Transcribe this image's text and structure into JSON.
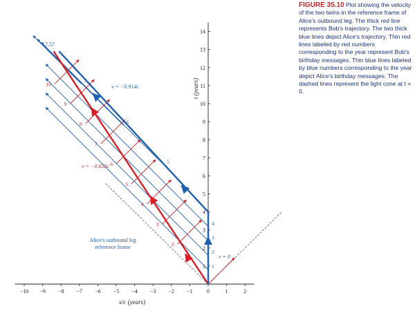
{
  "caption": {
    "label": "FIGURE 35.10",
    "text": "Plot showing the velocity of the two twins in the reference frame of Alice's outbound leg. The thick red line represents Bob's trajectory. The two thick blue lines depict Alice's trajectory. Thin red lines labeled by red numbers corresponding to the year represent Bob's birthday messages. Thin blue lines labeled by blue numbers corresponding to the year depict Alice's birthday messages. The dashed lines represent the light cone at t = 0."
  },
  "chart_data": {
    "type": "line",
    "xlabel": "x/c (years)",
    "ylabel": "t (years)",
    "xlim": [
      -10.5,
      2.5
    ],
    "ylim": [
      0,
      14.5
    ],
    "x_ticks": [
      -10,
      -9,
      -8,
      -7,
      -6,
      -5,
      -4,
      -3,
      -2,
      -1,
      0,
      1,
      2
    ],
    "y_ticks": [
      1,
      2,
      3,
      4,
      5,
      6,
      7,
      8,
      9,
      10,
      11,
      12,
      13,
      14
    ],
    "x_tick_labels": [
      "−10",
      "−9",
      "−8",
      "−7",
      "−6",
      "−5",
      "−4",
      "−3",
      "−2",
      "−1",
      "0",
      "1",
      "2"
    ],
    "y_tick_labels": [
      "1",
      "2",
      "3",
      "4",
      "5",
      "6",
      "7",
      "8",
      "9",
      "10",
      "11",
      "12",
      "13",
      "14"
    ],
    "frame_label": "Alice's outbound leg reference frame",
    "bob_trajectory": {
      "color": "#d61f26",
      "velocity_label": "v = −0.650c",
      "points": [
        [
          0,
          0
        ],
        [
          -8.4,
          12.9
        ]
      ],
      "year_marks": [
        {
          "label": "2",
          "x": -1.67,
          "y": 2.22
        },
        {
          "label": "3",
          "x": -2.5,
          "y": 3.33
        },
        {
          "label": "4",
          "x": -3.33,
          "y": 4.44
        },
        {
          "label": "5",
          "x": -4.17,
          "y": 5.56
        },
        {
          "label": "6",
          "x": -5.0,
          "y": 6.67
        },
        {
          "label": "7",
          "x": -5.84,
          "y": 7.77
        },
        {
          "label": "8",
          "x": -6.67,
          "y": 8.89
        },
        {
          "label": "9",
          "x": -7.5,
          "y": 10.0
        },
        {
          "label": "10",
          "x": -8.34,
          "y": 11.1
        }
      ]
    },
    "alice_trajectory": {
      "color": "#1e5fae",
      "rest_label": "v = 0",
      "return_label": "v = −0.914c",
      "end_label": "7.57",
      "turnaround": [
        0,
        4.0
      ],
      "points": [
        [
          0,
          0
        ],
        [
          0,
          4.0
        ],
        [
          -8.1,
          12.9
        ]
      ],
      "year_marks": [
        {
          "label": "1",
          "x": 0,
          "y": 0.8
        },
        {
          "label": "2",
          "x": 0,
          "y": 1.6
        },
        {
          "label": "3",
          "x": 0,
          "y": 2.4
        },
        {
          "label": "4",
          "x": 0,
          "y": 3.2
        },
        {
          "label": "5",
          "x": -2.4,
          "y": 6.6
        },
        {
          "label": "6",
          "x": -4.6,
          "y": 8.8
        },
        {
          "label": "7",
          "x": -6.9,
          "y": 11.1
        }
      ]
    },
    "light_cone": {
      "left": [
        [
          0,
          0
        ],
        [
          -5.6,
          5.6
        ]
      ],
      "right": [
        [
          0,
          0
        ],
        [
          4.0,
          4.0
        ]
      ]
    }
  }
}
